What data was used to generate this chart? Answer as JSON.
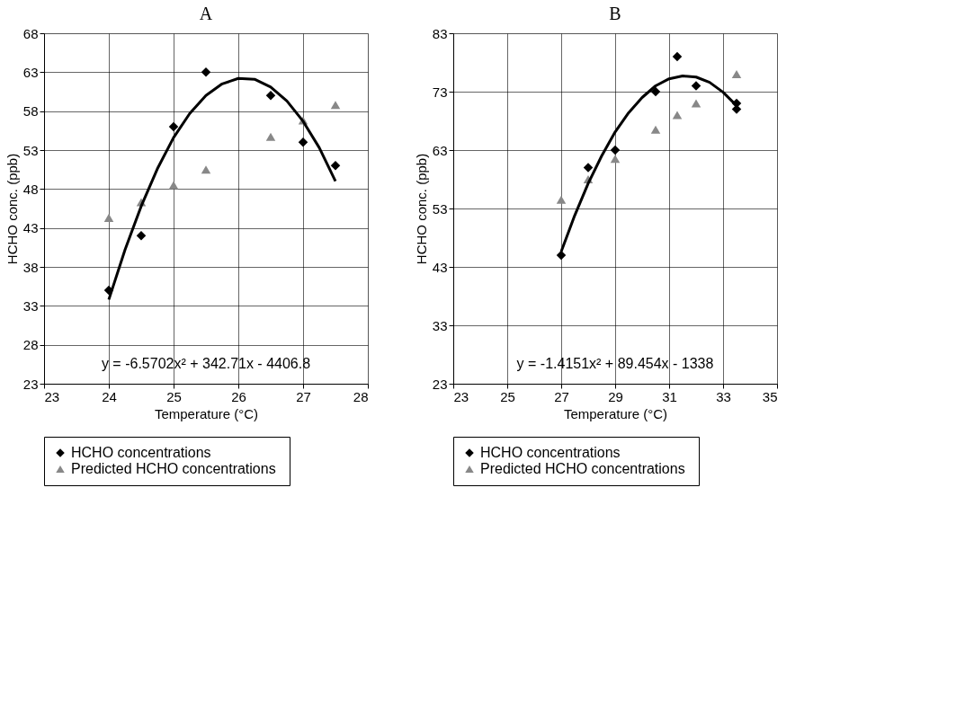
{
  "chart_data": [
    {
      "type": "scatter",
      "title": "A",
      "xlabel": "Temperature (°C)",
      "ylabel": "HCHO conc. (ppb)",
      "xlim": [
        23,
        28
      ],
      "xticks": [
        23,
        24,
        25,
        26,
        27,
        28
      ],
      "ylim": [
        23,
        68
      ],
      "yticks": [
        23,
        28,
        33,
        38,
        43,
        48,
        53,
        58,
        63,
        68
      ],
      "grid": true,
      "legend": "bottom",
      "annotations": [
        "y = -6.5702x² + 342.71x - 4406.8"
      ],
      "series": [
        {
          "name": "HCHO concentrations",
          "marker": "diamond",
          "color": "#000000",
          "x": [
            24,
            24.5,
            25,
            25.5,
            26.5,
            27,
            27.5
          ],
          "values": [
            35,
            42,
            56,
            63,
            60,
            54,
            51
          ]
        },
        {
          "name": "Predicted  HCHO concentrations",
          "marker": "triangle",
          "color": "#888888",
          "x": [
            24,
            24.5,
            25,
            25.5,
            26.5,
            27,
            27.5
          ],
          "values": [
            44.3,
            46.3,
            48.5,
            50.5,
            54.7,
            56.8,
            58.8
          ]
        },
        {
          "type": "line",
          "line_style": "solid",
          "color": "#000000",
          "x": [
            24,
            24.25,
            24.5,
            24.75,
            25,
            25.25,
            25.5,
            25.75,
            26,
            26.25,
            26.5,
            26.75,
            27,
            27.25,
            27.5
          ],
          "values": [
            33.8,
            40.2,
            45.8,
            50.6,
            54.6,
            57.7,
            60.0,
            61.5,
            62.2,
            62.1,
            61.1,
            59.3,
            56.7,
            53.3,
            49.0
          ]
        }
      ]
    },
    {
      "type": "scatter",
      "title": "B",
      "xlabel": "Temperature (°C)",
      "ylabel": "HCHO conc. (ppb)",
      "xlim": [
        23,
        35
      ],
      "xticks": [
        23,
        25,
        27,
        29,
        31,
        33,
        35
      ],
      "ylim": [
        23,
        83
      ],
      "yticks": [
        23,
        33,
        43,
        53,
        63,
        73,
        83
      ],
      "grid": true,
      "legend": "bottom",
      "annotations": [
        "y = -1.4151x² + 89.454x - 1338"
      ],
      "series": [
        {
          "name": "HCHO concentrations",
          "marker": "diamond",
          "color": "#000000",
          "x": [
            27,
            28,
            29,
            30.5,
            31.3,
            32,
            33.5,
            33.5
          ],
          "values": [
            45,
            60,
            63,
            73,
            79,
            74,
            71,
            70
          ]
        },
        {
          "name": "Predicted  HCHO concentrations",
          "marker": "triangle",
          "color": "#888888",
          "x": [
            27,
            28,
            29,
            30.5,
            31.3,
            32,
            33.5
          ],
          "values": [
            54.5,
            58,
            61.5,
            66.5,
            69,
            71,
            76
          ]
        },
        {
          "type": "line",
          "line_style": "solid",
          "color": "#000000",
          "x": [
            27,
            27.5,
            28,
            28.5,
            29,
            29.5,
            30,
            30.5,
            31,
            31.5,
            32,
            32.5,
            33,
            33.5
          ],
          "values": [
            45.6,
            51.8,
            57.3,
            62.0,
            66.1,
            69.4,
            72.0,
            74.0,
            75.2,
            75.7,
            75.5,
            74.6,
            72.9,
            70.6
          ]
        }
      ]
    }
  ]
}
